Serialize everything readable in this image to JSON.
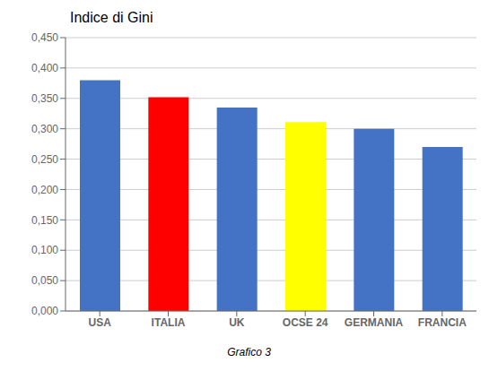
{
  "chart_data": {
    "type": "bar",
    "title": "Indice di Gini",
    "caption": "Grafico 3",
    "categories": [
      "USA",
      "ITALIA",
      "UK",
      "OCSE 24",
      "GERMANIA",
      "FRANCIA"
    ],
    "values": [
      0.38,
      0.352,
      0.335,
      0.311,
      0.3,
      0.27
    ],
    "colors": [
      "#4472C4",
      "#FF0000",
      "#4472C4",
      "#FFFF00",
      "#4472C4",
      "#4472C4"
    ],
    "ylim": [
      0,
      0.45
    ],
    "yticks": [
      {
        "value": 0.0,
        "label": "0,000"
      },
      {
        "value": 0.05,
        "label": "0,050"
      },
      {
        "value": 0.1,
        "label": "0,100"
      },
      {
        "value": 0.15,
        "label": "0,150"
      },
      {
        "value": 0.2,
        "label": "0,200"
      },
      {
        "value": 0.25,
        "label": "0,250"
      },
      {
        "value": 0.3,
        "label": "0,300"
      },
      {
        "value": 0.35,
        "label": "0,350"
      },
      {
        "value": 0.4,
        "label": "0,400"
      },
      {
        "value": 0.45,
        "label": "0,450"
      }
    ],
    "grid": true
  }
}
